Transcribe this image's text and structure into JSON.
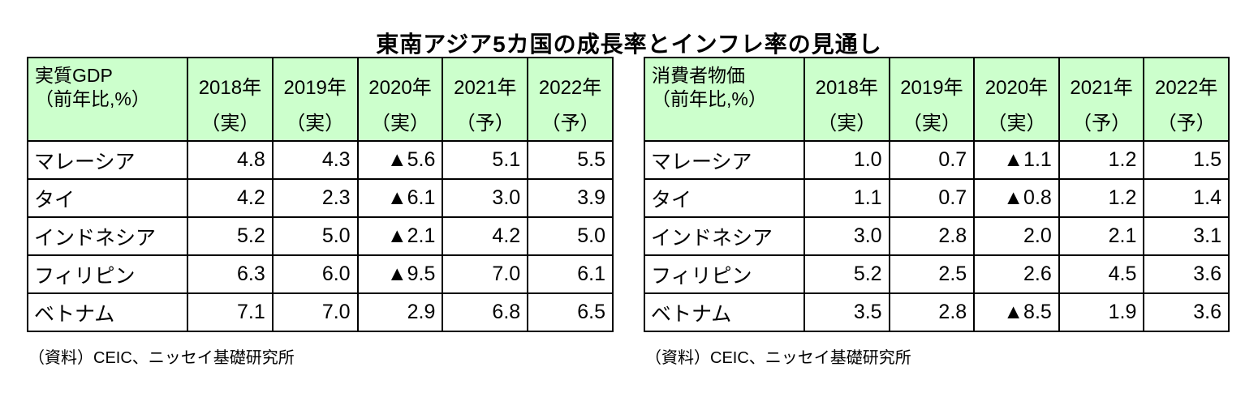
{
  "title": "東南アジア5カ国の成長率とインフレ率の見通し",
  "colors": {
    "header_bg": "#ccffcc",
    "border": "#000000",
    "text": "#000000",
    "background": "#ffffff",
    "negative_marker": "▲"
  },
  "tables": [
    {
      "header_title": "実質GDP",
      "header_subtitle": "（前年比,%）",
      "columns": [
        {
          "year": "2018年",
          "status": "（実）"
        },
        {
          "year": "2019年",
          "status": "（実）"
        },
        {
          "year": "2020年",
          "status": "（実）"
        },
        {
          "year": "2021年",
          "status": "（予）"
        },
        {
          "year": "2022年",
          "status": "（予）"
        }
      ],
      "rows": [
        {
          "country": "マレーシア",
          "values": [
            "4.8",
            "4.3",
            "▲5.6",
            "5.1",
            "5.5"
          ]
        },
        {
          "country": "タイ",
          "values": [
            "4.2",
            "2.3",
            "▲6.1",
            "3.0",
            "3.9"
          ]
        },
        {
          "country": "インドネシア",
          "values": [
            "5.2",
            "5.0",
            "▲2.1",
            "4.2",
            "5.0"
          ]
        },
        {
          "country": "フィリピン",
          "values": [
            "6.3",
            "6.0",
            "▲9.5",
            "7.0",
            "6.1"
          ]
        },
        {
          "country": "ベトナム",
          "values": [
            "7.1",
            "7.0",
            "2.9",
            "6.8",
            "6.5"
          ]
        }
      ],
      "source": "（資料）CEIC、ニッセイ基礎研究所"
    },
    {
      "header_title": "消費者物価",
      "header_subtitle": "（前年比,%）",
      "columns": [
        {
          "year": "2018年",
          "status": "（実）"
        },
        {
          "year": "2019年",
          "status": "（実）"
        },
        {
          "year": "2020年",
          "status": "（実）"
        },
        {
          "year": "2021年",
          "status": "（予）"
        },
        {
          "year": "2022年",
          "status": "（予）"
        }
      ],
      "rows": [
        {
          "country": "マレーシア",
          "values": [
            "1.0",
            "0.7",
            "▲1.1",
            "1.2",
            "1.5"
          ]
        },
        {
          "country": "タイ",
          "values": [
            "1.1",
            "0.7",
            "▲0.8",
            "1.2",
            "1.4"
          ]
        },
        {
          "country": "インドネシア",
          "values": [
            "3.0",
            "2.8",
            "2.0",
            "2.1",
            "3.1"
          ]
        },
        {
          "country": "フィリピン",
          "values": [
            "5.2",
            "2.5",
            "2.6",
            "4.5",
            "3.6"
          ]
        },
        {
          "country": "ベトナム",
          "values": [
            "3.5",
            "2.8",
            "▲8.5",
            "1.9",
            "3.6"
          ]
        }
      ],
      "source": "（資料）CEIC、ニッセイ基礎研究所"
    }
  ],
  "chart_data": [
    {
      "type": "table",
      "title": "実質GDP（前年比,%）",
      "columns": [
        "2018年（実）",
        "2019年（実）",
        "2020年（実）",
        "2021年（予）",
        "2022年（予）"
      ],
      "row_labels": [
        "マレーシア",
        "タイ",
        "インドネシア",
        "フィリピン",
        "ベトナム"
      ],
      "values": [
        [
          4.8,
          4.3,
          -5.6,
          5.1,
          5.5
        ],
        [
          4.2,
          2.3,
          -6.1,
          3.0,
          3.9
        ],
        [
          5.2,
          5.0,
          -2.1,
          4.2,
          5.0
        ],
        [
          6.3,
          6.0,
          -9.5,
          7.0,
          6.1
        ],
        [
          7.1,
          7.0,
          2.9,
          6.8,
          6.5
        ]
      ],
      "negative_marker": "▲",
      "source": "（資料）CEIC、ニッセイ基礎研究所"
    },
    {
      "type": "table",
      "title": "消費者物価（前年比,%）",
      "columns": [
        "2018年（実）",
        "2019年（実）",
        "2020年（実）",
        "2021年（予）",
        "2022年（予）"
      ],
      "row_labels": [
        "マレーシア",
        "タイ",
        "インドネシア",
        "フィリピン",
        "ベトナム"
      ],
      "values": [
        [
          1.0,
          0.7,
          -1.1,
          1.2,
          1.5
        ],
        [
          1.1,
          0.7,
          -0.8,
          1.2,
          1.4
        ],
        [
          3.0,
          2.8,
          2.0,
          2.1,
          3.1
        ],
        [
          5.2,
          2.5,
          2.6,
          4.5,
          3.6
        ],
        [
          3.5,
          2.8,
          -8.5,
          1.9,
          3.6
        ]
      ],
      "negative_marker": "▲",
      "source": "（資料）CEIC、ニッセイ基礎研究所"
    }
  ]
}
